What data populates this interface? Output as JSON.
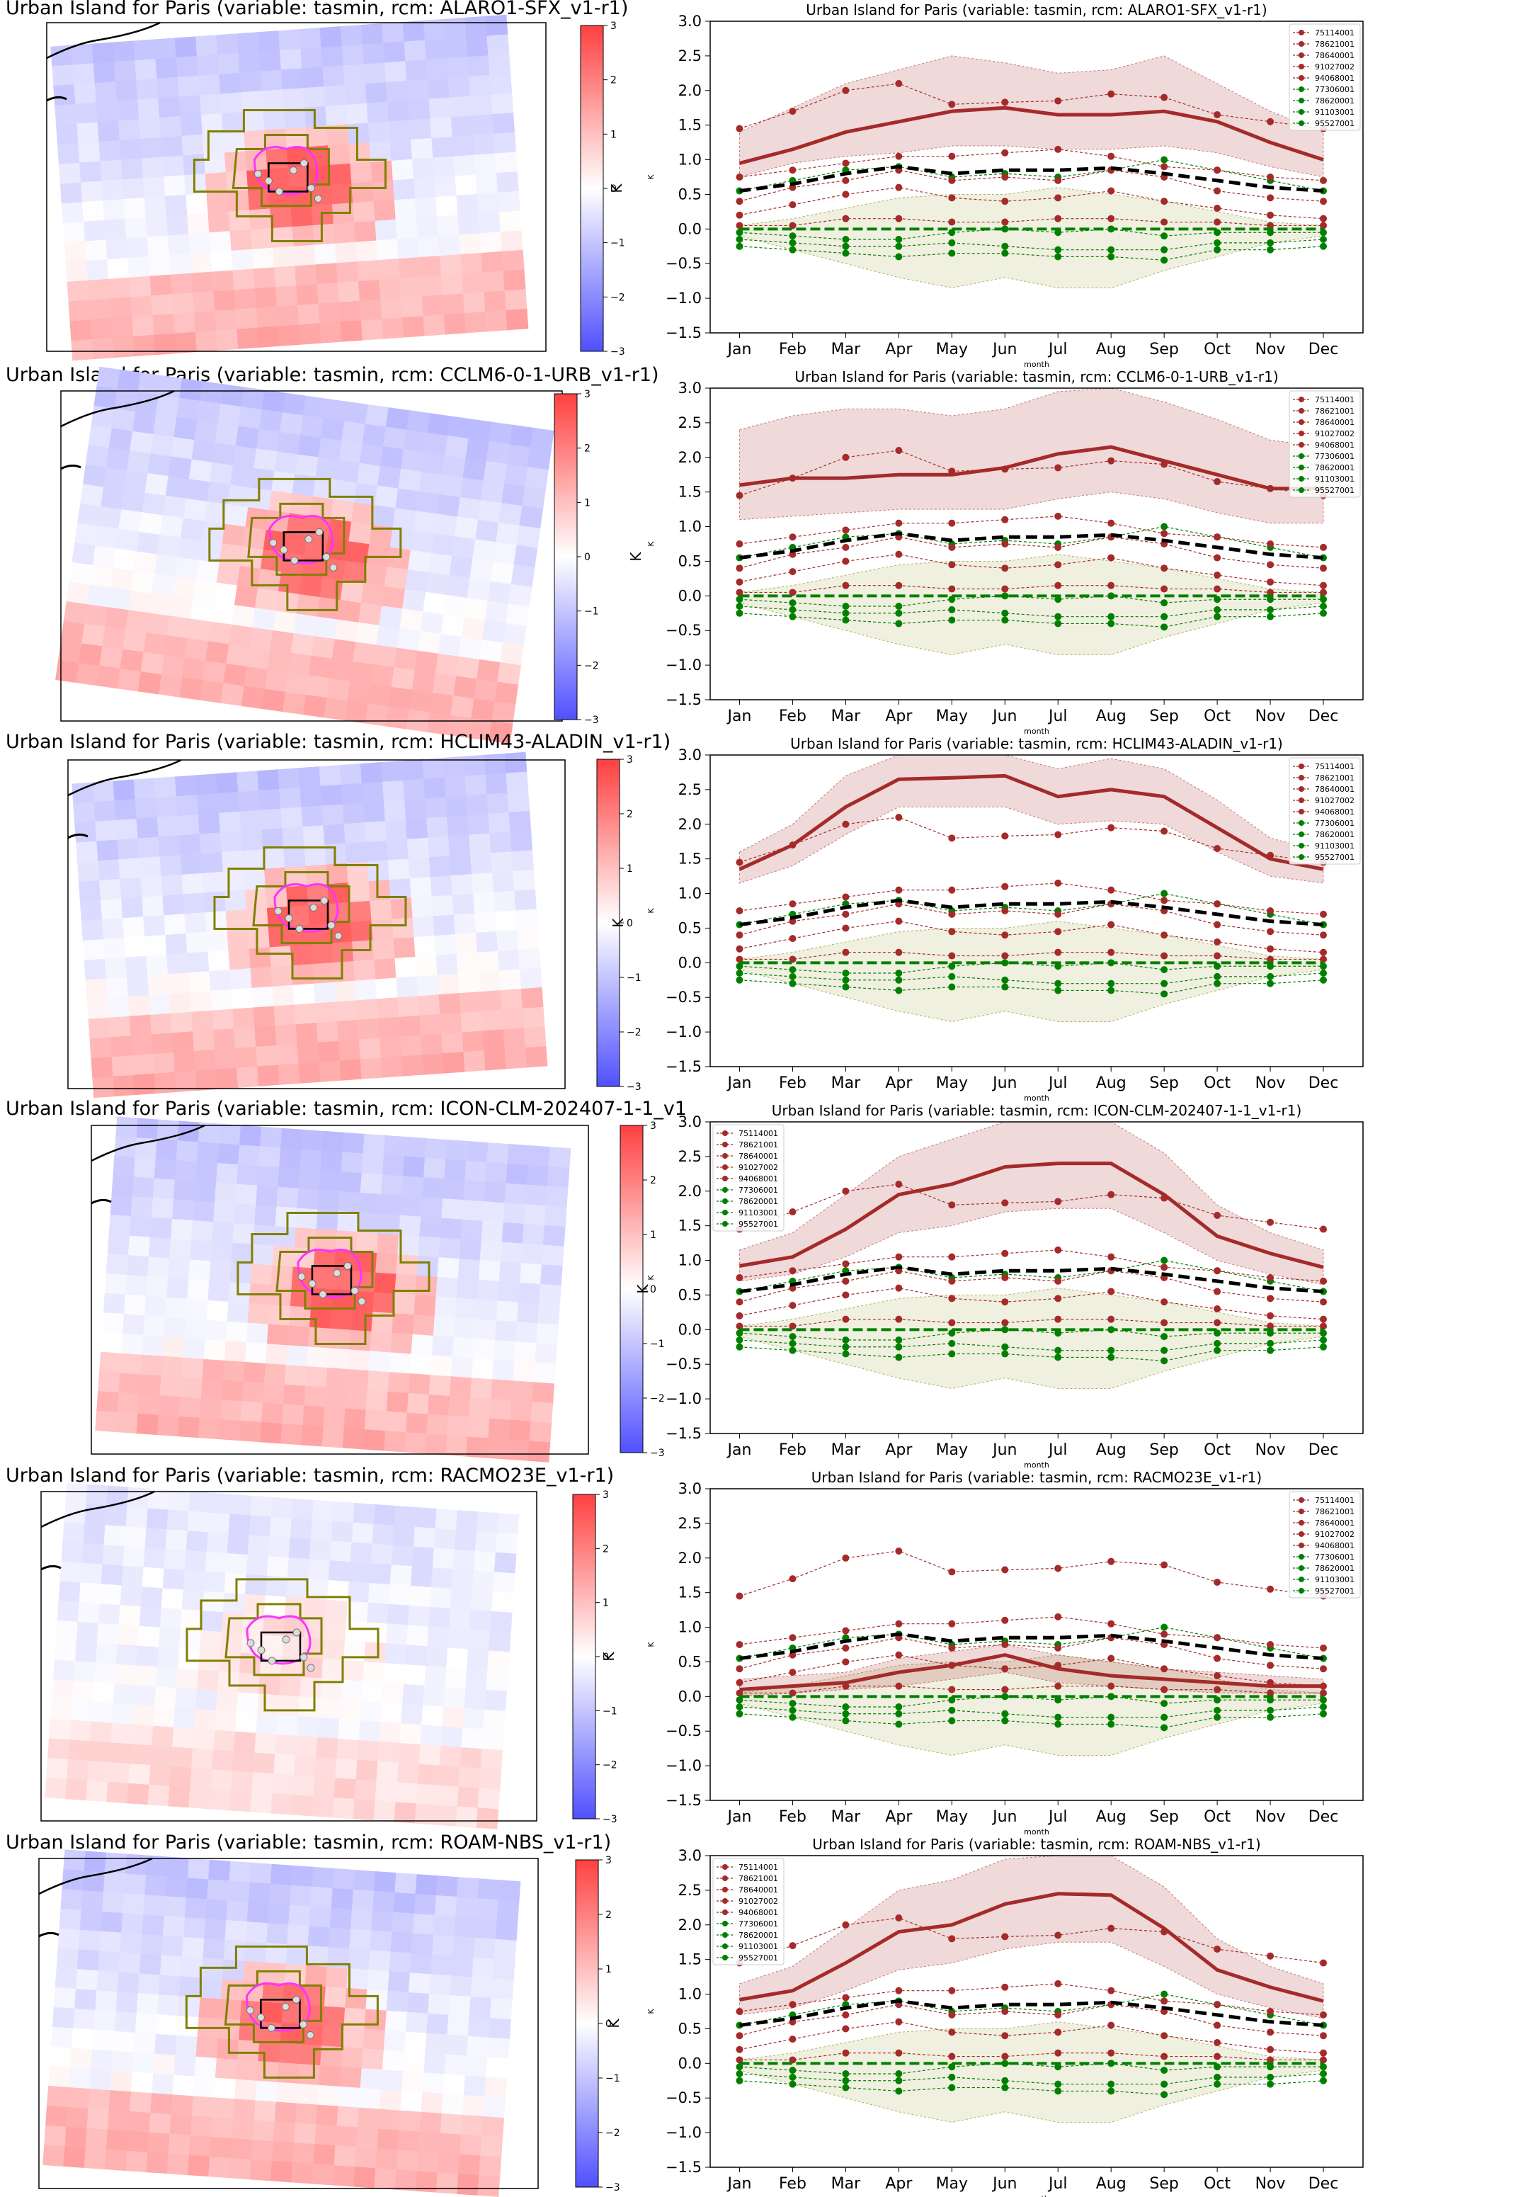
{
  "colorbar": {
    "label": "K",
    "ticks": [
      "3",
      "2",
      "1",
      "0",
      "−1",
      "−2",
      "−3"
    ],
    "min_color": "#5050ff",
    "mid_color": "#ffffff",
    "max_color": "#ff4040"
  },
  "legend_stations": {
    "urban": [
      "75114001",
      "78621001",
      "78640001",
      "91027002",
      "94068001"
    ],
    "rural": [
      "77306001",
      "78620001",
      "91103001",
      "95527001"
    ]
  },
  "colors": {
    "urban": "#a52a2a",
    "rural": "#008000",
    "mean_obs": "#000000",
    "model_urban_band": "#a52a2a",
    "model_rural_band": "#808000",
    "map_outline": "#808000",
    "urban_contour": "#ff33ff"
  },
  "panels": [
    {
      "map_title": "Urban Island for Paris (variable: tasmin, rcm: ALARO1-SFX_v1-r1)",
      "chart_title": "Urban Island for Paris (variable: tasmin, rcm: ALARO1-SFX_v1-r1)",
      "legend_position": "top-right"
    },
    {
      "map_title": "Urban Island for Paris (variable: tasmin, rcm: CCLM6-0-1-URB_v1-r1)",
      "chart_title": "Urban Island for Paris (variable: tasmin, rcm: CCLM6-0-1-URB_v1-r1)",
      "legend_position": "top-right"
    },
    {
      "map_title": "Urban Island for Paris (variable: tasmin, rcm: HCLIM43-ALADIN_v1-r1)",
      "chart_title": "Urban Island for Paris (variable: tasmin, rcm: HCLIM43-ALADIN_v1-r1)",
      "legend_position": "top-right"
    },
    {
      "map_title": "Urban Island for Paris (variable: tasmin, rcm: ICON-CLM-202407-1-1_v1",
      "chart_title": "Urban Island for Paris (variable: tasmin, rcm: ICON-CLM-202407-1-1_v1-r1)",
      "legend_position": "top-left"
    },
    {
      "map_title": "Urban Island for Paris (variable: tasmin, rcm: RACMO23E_v1-r1)",
      "chart_title": "Urban Island for Paris (variable: tasmin, rcm: RACMO23E_v1-r1)",
      "legend_position": "top-right"
    },
    {
      "map_title": "Urban Island for Paris (variable: tasmin, rcm: ROAM-NBS_v1-r1)",
      "chart_title": "Urban Island for Paris (variable: tasmin, rcm: ROAM-NBS_v1-r1)",
      "legend_position": "top-left"
    }
  ],
  "chart_data": {
    "type": "line",
    "x": [
      "Jan",
      "Feb",
      "Mar",
      "Apr",
      "May",
      "Jun",
      "Jul",
      "Aug",
      "Sep",
      "Oct",
      "Nov",
      "Dec"
    ],
    "xlabel": "month",
    "ylabel": "K",
    "ylim": [
      -1.5,
      3.0
    ],
    "yticks": [
      "3.0",
      "2.5",
      "2.0",
      "1.5",
      "1.0",
      "0.5",
      "0.0",
      "−0.5",
      "−1.0",
      "−1.5"
    ],
    "grid": false,
    "observed_urban": [
      {
        "name": "75114001",
        "values": [
          1.45,
          1.7,
          2.0,
          2.1,
          1.8,
          1.83,
          1.85,
          1.95,
          1.9,
          1.65,
          1.55,
          1.45
        ]
      },
      {
        "name": "78621001",
        "values": [
          0.75,
          0.85,
          0.95,
          1.05,
          1.05,
          1.1,
          1.15,
          1.05,
          0.9,
          0.85,
          0.75,
          0.7
        ]
      },
      {
        "name": "78640001",
        "values": [
          0.4,
          0.6,
          0.7,
          0.85,
          0.7,
          0.75,
          0.7,
          0.85,
          0.75,
          0.55,
          0.45,
          0.4
        ]
      },
      {
        "name": "91027002",
        "values": [
          0.2,
          0.35,
          0.5,
          0.6,
          0.45,
          0.4,
          0.45,
          0.55,
          0.4,
          0.3,
          0.2,
          0.15
        ]
      },
      {
        "name": "94068001",
        "values": [
          0.05,
          0.05,
          0.15,
          0.15,
          0.1,
          0.1,
          0.15,
          0.15,
          0.1,
          0.1,
          0.05,
          0.05
        ]
      }
    ],
    "observed_rural": [
      {
        "name": "77306001",
        "values": [
          0.55,
          0.7,
          0.85,
          0.9,
          0.75,
          0.8,
          0.75,
          0.85,
          1.0,
          0.85,
          0.7,
          0.55
        ]
      },
      {
        "name": "78620001",
        "values": [
          -0.05,
          -0.1,
          -0.15,
          -0.15,
          -0.05,
          0.0,
          -0.05,
          0.0,
          -0.1,
          -0.05,
          -0.05,
          -0.05
        ]
      },
      {
        "name": "91103001",
        "values": [
          -0.15,
          -0.2,
          -0.25,
          -0.25,
          -0.2,
          -0.25,
          -0.3,
          -0.3,
          -0.3,
          -0.2,
          -0.2,
          -0.15
        ]
      },
      {
        "name": "95527001",
        "values": [
          -0.25,
          -0.3,
          -0.35,
          -0.4,
          -0.35,
          -0.35,
          -0.4,
          -0.4,
          -0.45,
          -0.3,
          -0.3,
          -0.25
        ]
      }
    ],
    "observed_mean": [
      0.55,
      0.65,
      0.8,
      0.9,
      0.8,
      0.85,
      0.85,
      0.88,
      0.8,
      0.7,
      0.6,
      0.55
    ],
    "observed_rural_mean": [
      0.0,
      0.0,
      0.0,
      0.0,
      0.0,
      0.0,
      0.0,
      0.0,
      0.0,
      0.0,
      0.0,
      0.0
    ],
    "rural_band": {
      "lower": [
        -0.1,
        -0.3,
        -0.5,
        -0.7,
        -0.85,
        -0.7,
        -0.85,
        -0.85,
        -0.6,
        -0.4,
        -0.2,
        -0.1
      ],
      "upper": [
        0.05,
        0.15,
        0.3,
        0.45,
        0.5,
        0.5,
        0.6,
        0.5,
        0.4,
        0.25,
        0.1,
        0.05
      ]
    },
    "models": [
      {
        "name": "ALARO1-SFX_v1-r1",
        "mean": [
          0.95,
          1.15,
          1.4,
          1.55,
          1.7,
          1.75,
          1.65,
          1.65,
          1.7,
          1.55,
          1.25,
          1.0
        ],
        "lower": [
          0.75,
          0.95,
          1.05,
          1.1,
          1.2,
          1.2,
          1.15,
          1.15,
          1.2,
          1.1,
          0.9,
          0.75
        ],
        "upper": [
          1.4,
          1.75,
          2.1,
          2.3,
          2.5,
          2.4,
          2.25,
          2.3,
          2.5,
          2.1,
          1.7,
          1.4
        ]
      },
      {
        "name": "CCLM6-0-1-URB_v1-r1",
        "mean": [
          1.6,
          1.7,
          1.7,
          1.75,
          1.75,
          1.85,
          2.05,
          2.15,
          1.95,
          1.75,
          1.55,
          1.55
        ],
        "lower": [
          1.1,
          1.15,
          1.2,
          1.25,
          1.25,
          1.25,
          1.4,
          1.5,
          1.4,
          1.2,
          1.05,
          1.05
        ],
        "upper": [
          2.4,
          2.6,
          2.7,
          2.7,
          2.6,
          2.7,
          2.95,
          3.0,
          2.8,
          2.55,
          2.25,
          2.15
        ]
      },
      {
        "name": "HCLIM43-ALADIN_v1-r1",
        "mean": [
          1.35,
          1.7,
          2.25,
          2.65,
          2.67,
          2.7,
          2.4,
          2.5,
          2.4,
          1.95,
          1.5,
          1.35
        ],
        "lower": [
          1.15,
          1.4,
          1.85,
          2.25,
          2.25,
          2.25,
          2.0,
          2.05,
          2.0,
          1.6,
          1.25,
          1.15
        ],
        "upper": [
          1.6,
          2.0,
          2.7,
          3.0,
          3.0,
          3.0,
          2.8,
          2.95,
          2.8,
          2.35,
          1.8,
          1.6
        ]
      },
      {
        "name": "ICON-CLM-202407-1-1_v1-r1",
        "mean": [
          0.92,
          1.05,
          1.45,
          1.95,
          2.1,
          2.35,
          2.4,
          2.4,
          1.95,
          1.35,
          1.1,
          0.9
        ],
        "lower": [
          0.7,
          0.8,
          1.05,
          1.4,
          1.5,
          1.7,
          1.75,
          1.75,
          1.4,
          1.0,
          0.8,
          0.65
        ],
        "upper": [
          1.15,
          1.4,
          1.95,
          2.5,
          2.75,
          3.0,
          3.0,
          3.0,
          2.55,
          1.8,
          1.4,
          1.15
        ]
      },
      {
        "name": "RACMO23E_v1-r1",
        "mean": [
          0.1,
          0.15,
          0.2,
          0.35,
          0.45,
          0.6,
          0.4,
          0.3,
          0.25,
          0.2,
          0.15,
          0.15
        ],
        "lower": [
          0.0,
          0.05,
          0.1,
          0.15,
          0.25,
          0.35,
          0.2,
          0.15,
          0.1,
          0.05,
          0.05,
          0.05
        ],
        "upper": [
          0.25,
          0.3,
          0.35,
          0.55,
          0.65,
          0.75,
          0.6,
          0.5,
          0.4,
          0.35,
          0.3,
          0.25
        ]
      },
      {
        "name": "ROAM-NBS_v1-r1",
        "mean": [
          0.92,
          1.05,
          1.45,
          1.9,
          2.0,
          2.3,
          2.45,
          2.43,
          1.95,
          1.35,
          1.1,
          0.9
        ],
        "lower": [
          0.7,
          0.8,
          1.05,
          1.35,
          1.45,
          1.65,
          1.75,
          1.75,
          1.4,
          1.0,
          0.8,
          0.65
        ],
        "upper": [
          1.15,
          1.4,
          1.95,
          2.5,
          2.65,
          2.95,
          3.0,
          3.0,
          2.55,
          1.8,
          1.4,
          1.15
        ]
      }
    ]
  }
}
